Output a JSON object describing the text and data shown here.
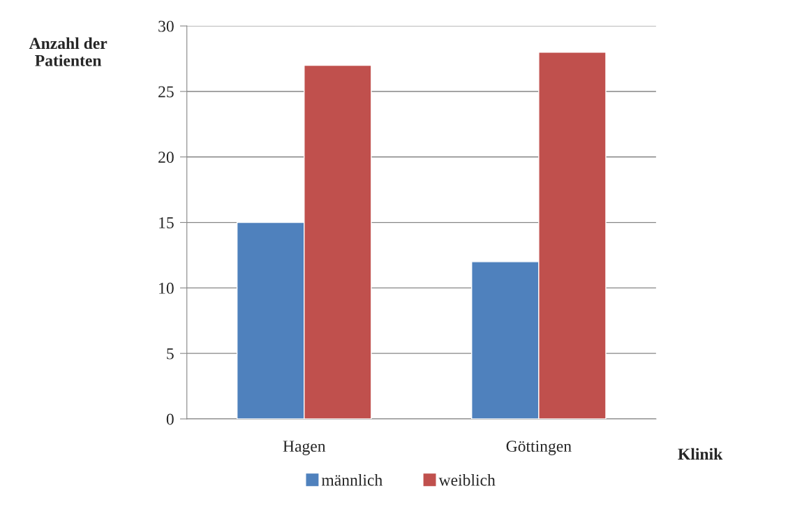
{
  "chart_data": {
    "type": "bar",
    "ylabel": "Anzahl der Patienten",
    "xlabel": "Klinik",
    "categories": [
      "Hagen",
      "Göttingen"
    ],
    "series": [
      {
        "name": "männlich",
        "color": "#4f81bd",
        "values": [
          15,
          12
        ]
      },
      {
        "name": "weiblich",
        "color": "#c0504d",
        "values": [
          27,
          28
        ]
      }
    ],
    "ylim": [
      0,
      30
    ],
    "yticks": [
      0,
      5,
      10,
      15,
      20,
      25,
      30
    ],
    "grid": "y",
    "legend": "bottom"
  }
}
